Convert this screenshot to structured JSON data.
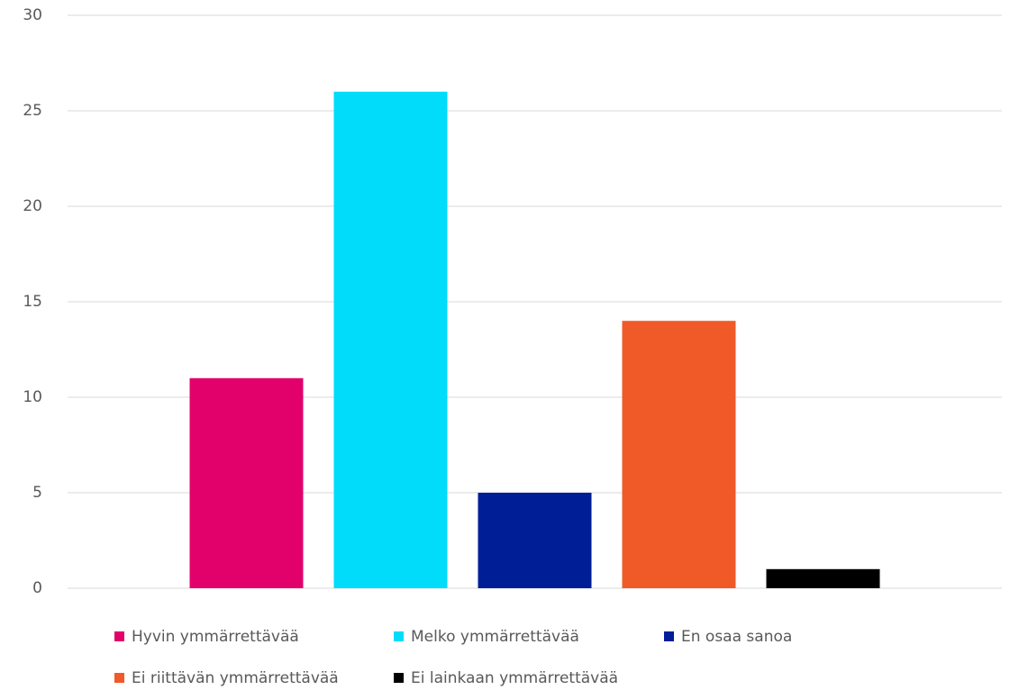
{
  "chart_data": {
    "type": "bar",
    "categories": [
      null
    ],
    "series": [
      {
        "name": "Hyvin ymmärrettävää",
        "color": "#e2006a",
        "values": [
          11
        ]
      },
      {
        "name": "Melko ymmärrettävää",
        "color": "#00dcfa",
        "values": [
          26
        ]
      },
      {
        "name": "En osaa sanoa",
        "color": "#001e96",
        "values": [
          5
        ]
      },
      {
        "name": "Ei riittävän ymmärrettävää",
        "color": "#f05a28",
        "values": [
          14
        ]
      },
      {
        "name": "Ei lainkaan ymmärrettävää",
        "color": "#000000",
        "values": [
          1
        ]
      }
    ],
    "ylim": [
      0,
      30
    ],
    "yticks": [
      0,
      5,
      10,
      15,
      20,
      25,
      30
    ],
    "grid": true,
    "legend": "bottom"
  }
}
